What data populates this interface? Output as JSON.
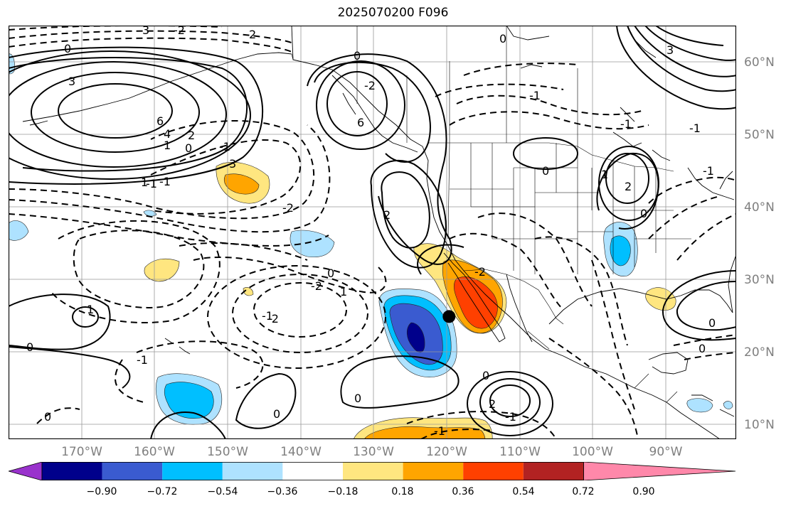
{
  "title": "2025070200 F096",
  "lon_labels": [
    "170°W",
    "160°W",
    "150°W",
    "140°W",
    "130°W",
    "120°W",
    "110°W",
    "100°W",
    "90°W"
  ],
  "lat_labels": [
    "60°N",
    "50°N",
    "40°N",
    "30°N",
    "20°N",
    "10°N"
  ],
  "colorbar": {
    "ticks": [
      "−0.90",
      "−0.72",
      "−0.54",
      "−0.36",
      "−0.18",
      "0.18",
      "0.36",
      "0.54",
      "0.72",
      "0.90"
    ],
    "colors": [
      "#9932cc",
      "#00008b",
      "#3a5bd0",
      "#00bfff",
      "#aee2ff",
      "#ffffff",
      "#ffe680",
      "#ffa500",
      "#ff4000",
      "#b22222",
      "#ff88aa"
    ]
  },
  "contour_labels": [
    "0",
    "3",
    "2",
    "-1",
    "0",
    "-2",
    "3",
    "2",
    "6",
    "-1",
    "1",
    "-1",
    "0",
    "3",
    "6",
    "4",
    "0",
    "0",
    "3",
    "-2",
    "-2",
    "0",
    "1",
    "-2",
    "2",
    "-1",
    "1",
    "-1",
    "-1",
    "-2",
    "1",
    "0",
    "-2",
    "0",
    "0",
    "2",
    "-1",
    "-1",
    "0",
    "0",
    "-1",
    "0",
    "1",
    "2",
    "0",
    "0",
    "-1",
    "-1"
  ],
  "marker": {
    "name": "location-marker",
    "lon": -118.5,
    "lat": 24.8
  }
}
